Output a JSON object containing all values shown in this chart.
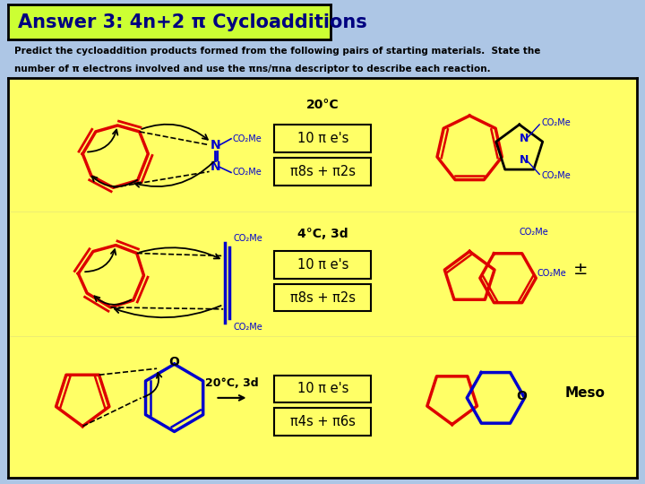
{
  "title": "Answer 3: 4n+2 π Cycloadditions",
  "subtitle_line1": "Predict the cycloaddition products formed from the following pairs of starting materials.  State the",
  "subtitle_line2": "number of π electrons involved and use the πns/πna descriptor to describe each reaction.",
  "bg_color": "#FFFF66",
  "header_bg": "#CCFF33",
  "outer_bg": "#ADC6E5",
  "title_color": "#000080",
  "row1_condition": "20°C",
  "row1_electrons": "10 π e's",
  "row1_descriptor": "π8s + π2s",
  "row2_condition": "4°C, 3d",
  "row2_electrons": "10 π e's",
  "row2_descriptor": "π8s + π2s",
  "row3_condition": "20°C, 3d",
  "row3_electrons": "10 π e's",
  "row3_descriptor": "π4s + π6s",
  "row3_label": "Meso",
  "pm_symbol": "±",
  "red": "#DD0000",
  "blue": "#0000CC",
  "black": "#000000"
}
